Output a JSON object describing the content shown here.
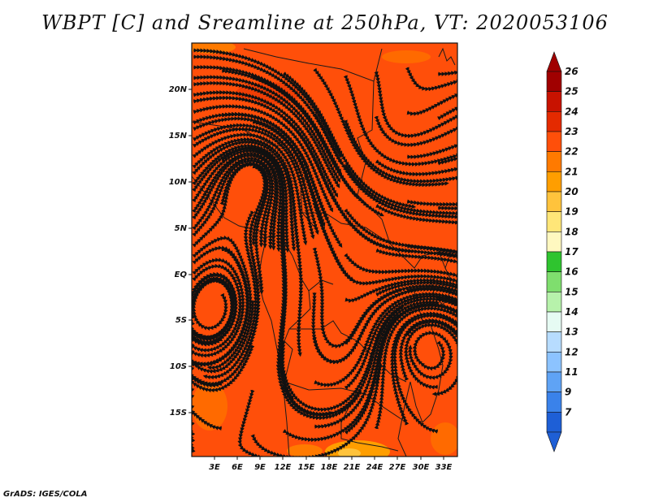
{
  "title": "WBPT [C] and Sreamline at 250hPa, VT: 2020053106",
  "credit": "GrADS: IGES/COLA",
  "map": {
    "lat_labels": [
      "20N",
      "15N",
      "10N",
      "5N",
      "EQ",
      "5S",
      "10S",
      "15S"
    ],
    "lon_labels": [
      "3E",
      "6E",
      "9E",
      "12E",
      "15E",
      "18E",
      "21E",
      "24E",
      "27E",
      "30E",
      "33E"
    ],
    "background_color": "#ff4f0a"
  },
  "colorbar": {
    "levels": [
      {
        "label": "26",
        "color": "#a00000"
      },
      {
        "label": "25",
        "color": "#c81200"
      },
      {
        "label": "24",
        "color": "#e42a00"
      },
      {
        "label": "23",
        "color": "#ff4f0a"
      },
      {
        "label": "22",
        "color": "#ff7a00"
      },
      {
        "label": "21",
        "color": "#ff9e00"
      },
      {
        "label": "20",
        "color": "#ffc33c"
      },
      {
        "label": "19",
        "color": "#ffe678"
      },
      {
        "label": "18",
        "color": "#fff8c0"
      },
      {
        "label": "17",
        "color": "#2fc42f"
      },
      {
        "label": "16",
        "color": "#7fde6e"
      },
      {
        "label": "15",
        "color": "#b7f2ab"
      },
      {
        "label": "14",
        "color": "#e6fbf3"
      },
      {
        "label": "13",
        "color": "#b7dcff"
      },
      {
        "label": "12",
        "color": "#8cc3ff"
      },
      {
        "label": "11",
        "color": "#5fa3f5"
      },
      {
        "label": "9",
        "color": "#3a82ea"
      },
      {
        "label": "7",
        "color": "#1e5fd6"
      }
    ]
  }
}
